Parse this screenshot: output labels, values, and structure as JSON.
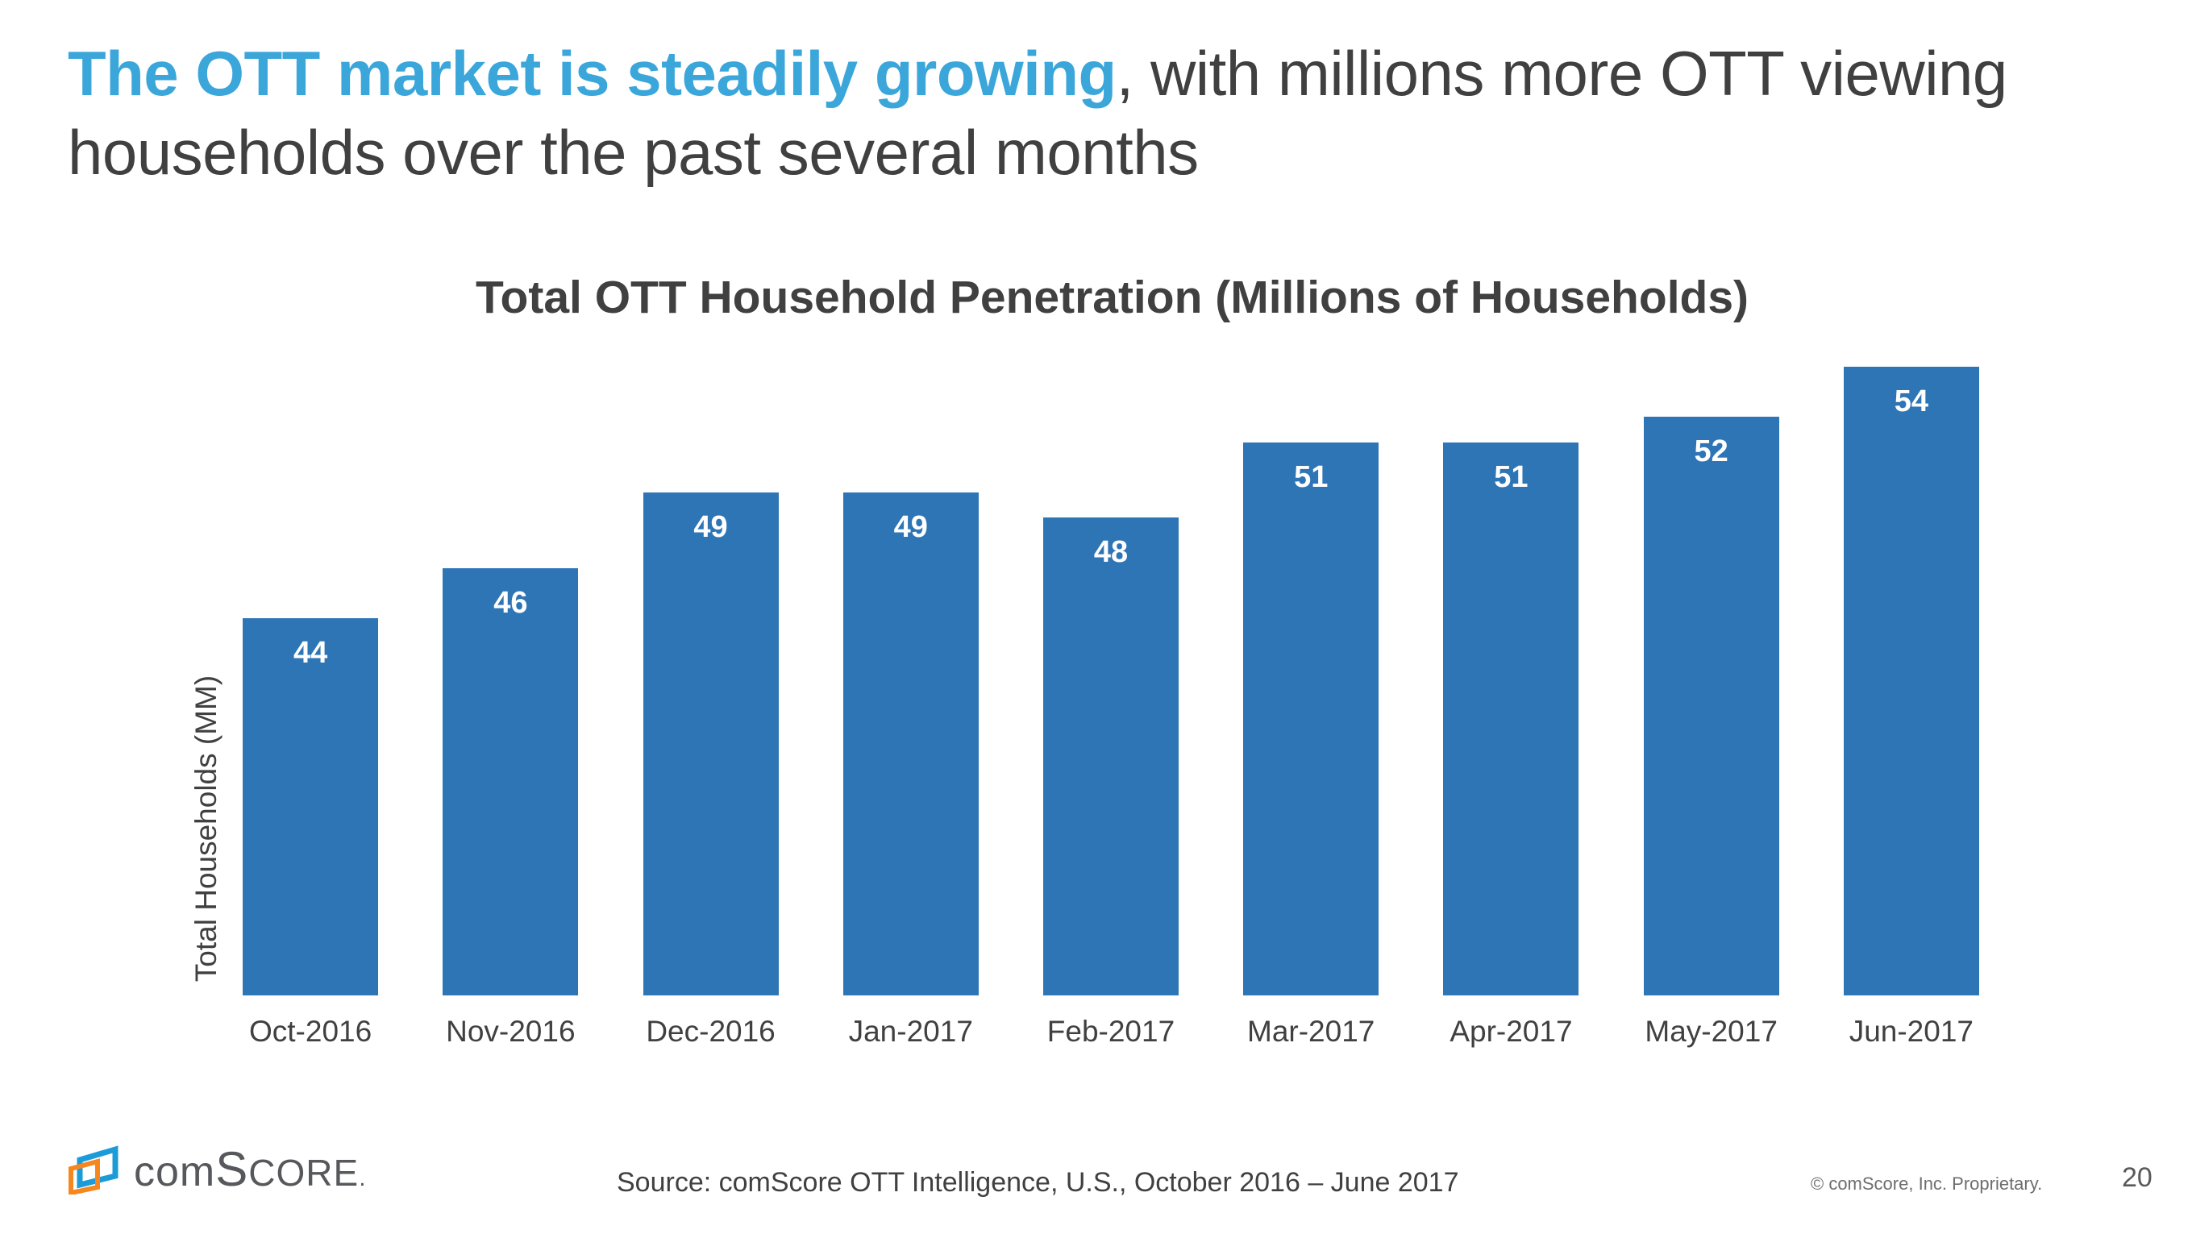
{
  "slide": {
    "title": {
      "line1_highlight": "The OTT market is steadily growing",
      "line1_rest": ", with millions more OTT viewing",
      "line2": "households over the past several months"
    },
    "footer": {
      "source": "Source: comScore OTT Intelligence, U.S., October 2016 – June 2017",
      "copyright": "© comScore, Inc. Proprietary.",
      "page_number": "20",
      "logo": {
        "icon": "comscore-logo-icon",
        "wordmark_prefix": "com",
        "wordmark_s": "S",
        "wordmark_suffix": "CORE",
        "wordmark_dot": "."
      }
    }
  },
  "chart_data": {
    "type": "bar",
    "title": "Total OTT Household Penetration (Millions of Households)",
    "categories": [
      "Oct-2016",
      "Nov-2016",
      "Dec-2016",
      "Jan-2017",
      "Feb-2017",
      "Mar-2017",
      "Apr-2017",
      "May-2017",
      "Jun-2017"
    ],
    "values": [
      44,
      46,
      49,
      49,
      48,
      51,
      51,
      52,
      54
    ],
    "xlabel": "",
    "ylabel": "Total Households (MM)",
    "ylim": [
      29,
      60
    ],
    "grid": false,
    "legend": false,
    "data_labels": "inside-top, white, bold",
    "bar_color": "#2E75B6",
    "value_label_color": "#FFFFFF"
  },
  "colors": {
    "title_highlight": "#3BA6DA",
    "body_text": "#404040",
    "bar_blue": "#2E75B6",
    "logo_blue": "#1B9CD8",
    "logo_orange": "#F6871F",
    "footer_gray": "#6E6E6E"
  }
}
